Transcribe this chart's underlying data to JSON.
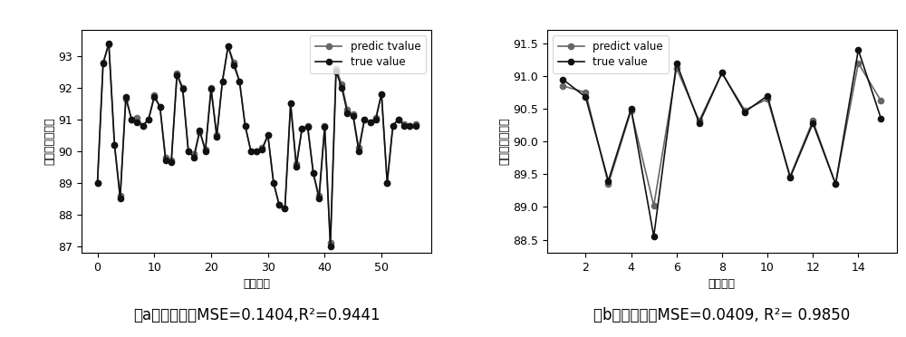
{
  "train": {
    "x": [
      0,
      1,
      2,
      3,
      4,
      5,
      6,
      7,
      8,
      9,
      10,
      11,
      12,
      13,
      14,
      15,
      16,
      17,
      18,
      19,
      20,
      21,
      22,
      23,
      24,
      25,
      26,
      27,
      28,
      29,
      30,
      31,
      32,
      33,
      34,
      35,
      36,
      37,
      38,
      39,
      40,
      41,
      42,
      43,
      44,
      45,
      46,
      47,
      48,
      49,
      50,
      51,
      52,
      53,
      54,
      55,
      56
    ],
    "predict": [
      89.0,
      92.8,
      93.35,
      90.2,
      88.6,
      91.65,
      91.0,
      91.05,
      90.8,
      91.0,
      91.75,
      91.4,
      89.8,
      89.7,
      92.45,
      92.0,
      90.0,
      89.9,
      90.6,
      90.05,
      92.0,
      90.5,
      92.2,
      93.3,
      92.8,
      92.2,
      90.8,
      90.0,
      90.0,
      90.1,
      90.5,
      89.0,
      88.3,
      88.2,
      91.5,
      89.6,
      90.7,
      90.8,
      89.3,
      88.6,
      90.8,
      87.1,
      92.6,
      92.1,
      91.3,
      91.15,
      90.1,
      91.0,
      90.9,
      91.05,
      91.8,
      89.0,
      90.8,
      91.0,
      90.85,
      90.8,
      90.85
    ],
    "true": [
      89.0,
      92.75,
      93.4,
      90.2,
      88.5,
      91.7,
      91.0,
      90.9,
      90.8,
      91.0,
      91.7,
      91.4,
      89.7,
      89.65,
      92.4,
      91.95,
      90.0,
      89.8,
      90.65,
      90.0,
      91.95,
      90.45,
      92.2,
      93.3,
      92.7,
      92.2,
      90.8,
      90.0,
      90.0,
      90.05,
      90.5,
      89.0,
      88.3,
      88.2,
      91.5,
      89.5,
      90.7,
      90.75,
      89.3,
      88.5,
      90.75,
      87.0,
      92.5,
      92.0,
      91.2,
      91.1,
      90.0,
      91.0,
      90.9,
      91.0,
      91.8,
      89.0,
      90.8,
      91.0,
      90.8,
      90.8,
      90.8
    ],
    "xlabel": "样本编号",
    "ylabel": "相对动弹性模量",
    "legend_predict": "predic tvalue",
    "legend_true": "true value",
    "caption_a": "（a）",
    "caption_b": "训练集：",
    "caption_c": "MSE=0.1404,R²=0.9441",
    "ylim": [
      86.8,
      93.8
    ],
    "yticks": [
      87,
      88,
      89,
      90,
      91,
      92,
      93
    ],
    "xticks": [
      0,
      10,
      20,
      30,
      40,
      50
    ]
  },
  "test": {
    "x": [
      1,
      2,
      3,
      4,
      5,
      6,
      7,
      8,
      9,
      10,
      11,
      12,
      13,
      14,
      15
    ],
    "predict": [
      90.85,
      90.75,
      89.35,
      90.47,
      89.02,
      91.12,
      90.32,
      91.05,
      90.48,
      90.65,
      89.47,
      90.32,
      89.35,
      91.2,
      90.62
    ],
    "true": [
      90.95,
      90.68,
      89.4,
      90.5,
      88.55,
      91.2,
      90.28,
      91.05,
      90.45,
      90.7,
      89.45,
      90.28,
      89.35,
      91.4,
      90.35
    ],
    "xlabel": "样本编号",
    "ylabel": "相对动弹性模量",
    "legend_predict": "predict value",
    "legend_true": "true value",
    "caption_a": "（b）",
    "caption_b": "测试集：",
    "caption_c": "MSE=0.0409, R²= 0.9850",
    "ylim": [
      88.3,
      91.7
    ],
    "yticks": [
      88.5,
      89.0,
      89.5,
      90.0,
      90.5,
      91.0,
      91.5
    ],
    "xticks": [
      2,
      4,
      6,
      8,
      10,
      12,
      14
    ]
  },
  "line_color_predict": "#666666",
  "line_color_true": "#111111",
  "marker_size": 4.5,
  "line_width": 1.2,
  "font_size_label": 9,
  "font_size_caption": 12,
  "font_size_tick": 9,
  "font_size_legend": 8.5
}
